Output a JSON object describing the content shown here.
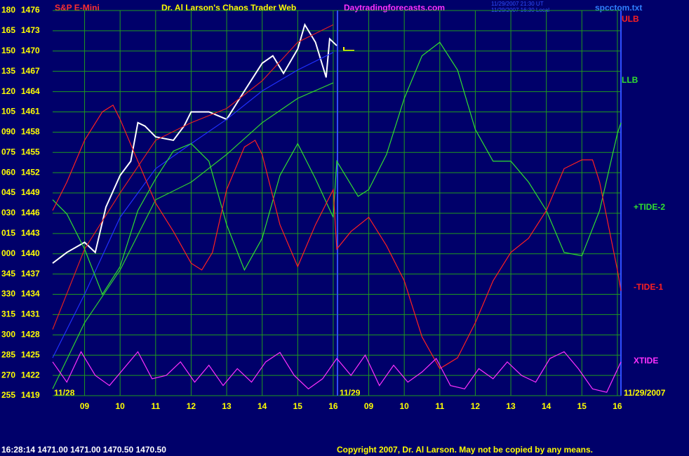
{
  "chart_data": {
    "type": "line",
    "header": {
      "left": "S&P E-Mini",
      "title": "Dr. Al Larson's Chaos Trader Web",
      "site": "Daytradingforecasts.com",
      "time_ut": "11/29/2007 21:30 UT",
      "time_local": "11/29/2007 16:30 Local",
      "file": "spcctom.txt"
    },
    "xlim": [
      0.1,
      16.1
    ],
    "xticks": [
      {
        "value": 1,
        "label": "09"
      },
      {
        "value": 2,
        "label": "10"
      },
      {
        "value": 3,
        "label": "11"
      },
      {
        "value": 4,
        "label": "12"
      },
      {
        "value": 5,
        "label": "13"
      },
      {
        "value": 6,
        "label": "14"
      },
      {
        "value": 7,
        "label": "15"
      },
      {
        "value": 8,
        "label": "16"
      },
      {
        "value": 9,
        "label": "09"
      },
      {
        "value": 10,
        "label": "10"
      },
      {
        "value": 11,
        "label": "11"
      },
      {
        "value": 12,
        "label": "12"
      },
      {
        "value": 13,
        "label": "13"
      },
      {
        "value": 14,
        "label": "14"
      },
      {
        "value": 15,
        "label": "15"
      },
      {
        "value": 16,
        "label": "16"
      }
    ],
    "ylim": [
      1419,
      1476
    ],
    "yticks": [
      1476,
      1473,
      1470,
      1467,
      1464,
      1461,
      1458,
      1455,
      1452,
      1449,
      1446,
      1443,
      1440,
      1437,
      1434,
      1431,
      1428,
      1425,
      1422,
      1419
    ],
    "y_degree_labels": [
      "180",
      "165",
      "150",
      "135",
      "120",
      "105",
      "090",
      "075",
      "060",
      "045",
      "030",
      "015",
      "000",
      "345",
      "330",
      "315",
      "300",
      "285",
      "270",
      "255"
    ],
    "grid": true,
    "grid_color": "#1f9a1f",
    "series": [
      {
        "color": "#ffffff",
        "x": [
          0.1,
          0.5,
          1.0,
          1.3,
          1.6,
          2.0,
          2.3,
          2.5,
          2.7,
          3.0,
          3.5,
          3.8,
          4.0,
          4.5,
          5.0,
          5.5,
          6.0,
          6.3,
          6.6,
          7.0,
          7.2,
          7.5,
          7.8,
          7.9,
          8.1
        ],
        "values": [
          1438.6,
          1440.2,
          1441.7,
          1440.2,
          1446.9,
          1451.6,
          1453.7,
          1459.4,
          1458.9,
          1457.3,
          1456.8,
          1458.9,
          1461.0,
          1461.0,
          1459.9,
          1464.1,
          1468.2,
          1469.3,
          1466.7,
          1470.3,
          1473.9,
          1471.3,
          1466.1,
          1471.8,
          1470.8
        ]
      },
      {
        "color": "#e02020",
        "x": [
          0.1,
          1,
          2,
          3,
          4,
          5,
          6,
          7,
          8
        ],
        "values": [
          1428.8,
          1440.7,
          1449,
          1456.8,
          1459.4,
          1461.5,
          1465.6,
          1471.3,
          1473.9
        ]
      },
      {
        "color": "#2030ff",
        "x": [
          0.1,
          1,
          2,
          3,
          4,
          5,
          6,
          7,
          8
        ],
        "values": [
          1424.6,
          1434,
          1445.4,
          1452.6,
          1456.3,
          1459.9,
          1464.1,
          1467.2,
          1469.8
        ]
      },
      {
        "color": "#30d030",
        "x": [
          0.1,
          1,
          2,
          3,
          4,
          5,
          6,
          7,
          8
        ],
        "values": [
          1420,
          1429.8,
          1437.6,
          1448,
          1450.6,
          1454.7,
          1459.4,
          1463,
          1465.3
        ]
      },
      {
        "name": "+TIDE-2",
        "color": "#30e030",
        "x": [
          0.1,
          0.5,
          1,
          1.5,
          2,
          2.5,
          3,
          3.5,
          4,
          4.5,
          5,
          5.5,
          6,
          6.5,
          7,
          7.5,
          8,
          8.1,
          8.7,
          9,
          9.5,
          10,
          10.5,
          11,
          11.5,
          12,
          12.5,
          13,
          13.5,
          14,
          14.5,
          15,
          15.5,
          16,
          16.1
        ],
        "values": [
          1448,
          1445.9,
          1440.7,
          1434,
          1438.1,
          1446.4,
          1451.1,
          1455.2,
          1456.3,
          1453.7,
          1444.3,
          1437.6,
          1442.3,
          1451.6,
          1456.3,
          1451.1,
          1445.4,
          1453.7,
          1448.5,
          1449.5,
          1454.7,
          1463,
          1469.3,
          1471.3,
          1467.2,
          1458.4,
          1453.7,
          1453.7,
          1450.6,
          1446.4,
          1440.2,
          1439.7,
          1446.4,
          1457.8,
          1459.4
        ]
      },
      {
        "name": "-TIDE-1",
        "color": "#ff2020",
        "x": [
          0.1,
          0.5,
          1,
          1.5,
          1.8,
          2,
          2.5,
          3,
          3.5,
          4,
          4.3,
          4.6,
          5,
          5.5,
          5.8,
          6,
          6.5,
          7,
          7.5,
          8,
          8.1,
          8.5,
          9,
          9.5,
          10,
          10.5,
          11,
          11.5,
          12,
          12.5,
          13,
          13.5,
          14,
          14.5,
          15,
          15.3,
          15.5,
          16,
          16.1
        ],
        "values": [
          1446.4,
          1450.6,
          1456.8,
          1461,
          1462,
          1459.9,
          1453.7,
          1447.5,
          1443.3,
          1438.6,
          1437.6,
          1440.2,
          1449.5,
          1455.8,
          1456.8,
          1454.7,
          1444.3,
          1438.1,
          1444.3,
          1449.5,
          1440.7,
          1443.3,
          1445.4,
          1441.2,
          1436,
          1427.7,
          1423,
          1424.6,
          1429.8,
          1436,
          1440.2,
          1442.3,
          1446.4,
          1452.6,
          1453.9,
          1453.9,
          1450.6,
          1437.6,
          1434.5
        ]
      },
      {
        "name": "XTIDE",
        "color": "#ff30ff",
        "x": [
          0.1,
          0.5,
          0.9,
          1.3,
          1.7,
          2.1,
          2.5,
          2.9,
          3.3,
          3.7,
          4.1,
          4.5,
          4.9,
          5.3,
          5.7,
          6.1,
          6.5,
          6.9,
          7.3,
          7.7,
          8.1,
          8.5,
          8.9,
          9.3,
          9.7,
          10.1,
          10.5,
          10.9,
          11.3,
          11.7,
          12.1,
          12.5,
          12.9,
          13.3,
          13.7,
          14.1,
          14.5,
          14.9,
          15.3,
          15.7,
          16.1
        ],
        "values": [
          1424,
          1421,
          1425.5,
          1422,
          1420.5,
          1423,
          1425.5,
          1421.5,
          1422,
          1424,
          1421,
          1423.5,
          1420.5,
          1423,
          1421,
          1424,
          1425.4,
          1422,
          1420,
          1421.5,
          1424.5,
          1422,
          1425,
          1420.5,
          1423.5,
          1421,
          1422.5,
          1424.5,
          1420.5,
          1420,
          1423,
          1421.5,
          1424,
          1422,
          1421,
          1424.5,
          1425.5,
          1423,
          1420,
          1419.5,
          1424
        ]
      }
    ],
    "annotations": {
      "ulb": "ULB",
      "llb": "LLB",
      "day1": "11/28",
      "day2": "11/29",
      "date": "11/29/2007"
    },
    "footer": {
      "status": "16:28:14  1471.00 1471.00 1470.50 1470.50",
      "copyright": "Copyright 2007, Dr. Al Larson. May not be copied by any means."
    }
  }
}
